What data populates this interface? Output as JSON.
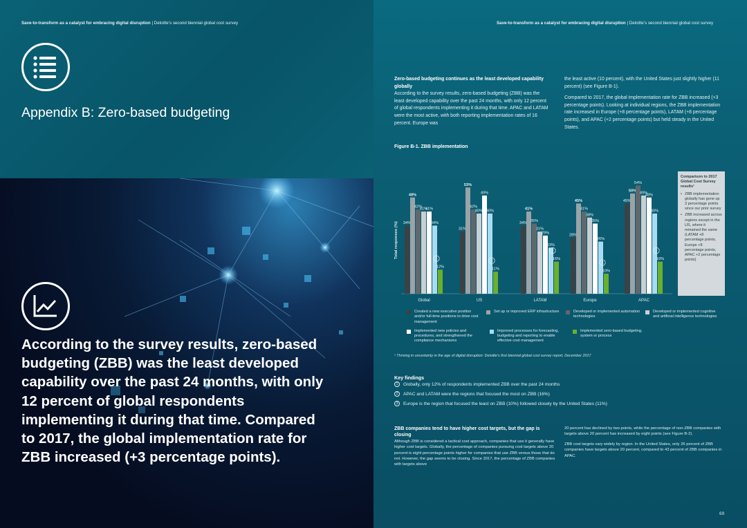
{
  "left": {
    "running_head_bold": "Save-to-transform as a catalyst for embracing digital disruption",
    "running_head_rest": "Deloitte’s second biennial global cost survey",
    "appendix_title": "Appendix B: Zero-based budgeting",
    "quote": "According to the survey results, zero-based budgeting (ZBB) was the least developed capability over the past 24 months, with only 12 percent of global respondents implementing it during that time. Compared to 2017, the global implementation rate for ZBB increased (+3 percentage points)."
  },
  "right": {
    "running_head_bold": "Save-to-transform as a catalyst for embracing digital disruption",
    "running_head_rest": "Deloitte’s second biennial global cost survey",
    "section1": {
      "heading": "Zero-based budgeting continues as the least developed capability globally",
      "col1_body": "According to the survey results, zero-based budgeting (ZBB) was the least developed capability over the past 24 months, with only 12 percent of global respondents implementing it during that time. APAC and LATAM were the most active, with both reporting implementation rates of 16 percent. Europe was",
      "col2_p1": "the least active (10 percent), with the United States just slightly higher (11 percent) (see Figure B-1).",
      "col2_p2": "Compared to 2017, the global implementation rate for ZBB increased (+3 percentage points). Looking at individual regions, the ZBB implementation rate increased in Europe (+8 percentage points), LATAM (+8 percentage points), and APAC (+2 percentage points) but held steady in the United States."
    },
    "figure_title": "Figure B-1. ZBB implementation",
    "comparison_box": {
      "heading": "Comparison to 2017 Global Cost Survey results¹",
      "bullets": [
        "ZBB implementation globally has gone up 3 percentage points since our prior survey",
        "ZBB increased across regions except in the US, where it remained the same (LATAM +8 percentage points, Europe +8 percentage points, APAC +2 percentage points)"
      ]
    },
    "legend": [
      "Created a new executive position and/or full-time positions to drive cost management",
      "Set up or improved ERP infrastructure",
      "Developed or implemented automation technologies",
      "Developed or implemented cognitive and artificial intelligence technologies",
      "Implemented new policies and procedures, and strengthened the compliance mechanisms",
      "Improved processes for forecasting, budgeting and reporting to enable effective cost management",
      "Implemented zero-based budgeting, system or process"
    ],
    "footnote": "¹ Thriving in uncertainty in the age of digital disruption: Deloitte's first biennial global cost survey report, December 2017",
    "key_findings": {
      "heading": "Key findings",
      "items": [
        {
          "num": "1",
          "text": "Globally, only 12% of respondents implemented ZBB over the past 24 months"
        },
        {
          "num": "2",
          "text": "APAC and LATAM were the regions that focused the most on ZBB (16%)"
        },
        {
          "num": "3",
          "text": "Europe is the region that focused the least on ZBB (10%) followed closely by the United States (11%)"
        }
      ]
    },
    "section2": {
      "heading": "ZBB companies tend to have higher cost targets, but the gap is closing",
      "col1_body": "Although ZBB is considered a tactical cost approach, companies that use it generally have higher cost targets. Globally, the percentage of companies pursuing cost targets above 20 percent is eight percentage points higher for companies that use ZBB versus those that do not. However, the gap seems to be closing. Since 2017, the percentage of ZBB companies with targets above",
      "col2_p1": "20 percent has declined by two points, while the percentage of non-ZBB companies with targets above 20 percent has increased by eight points (see Figure B-2).",
      "col2_p2": "ZBB cost targets vary widely by region. In the United States, only 26 percent of ZBB companies have targets above 20 percent, compared to 43 percent of ZBB companies in APAC."
    },
    "page_number": "69"
  },
  "colors": {
    "series": [
      "#3b4145",
      "#9aa3a8",
      "#5f686d",
      "#c9d0d4",
      "#ffffff",
      "#a8dcf2",
      "#6ab02e"
    ]
  },
  "chart_data": {
    "type": "bar",
    "title": "Figure B-1. ZBB implementation",
    "ylabel": "Total responses (%)",
    "xlabel": "",
    "ylim": [
      0,
      60
    ],
    "categories": [
      "Global",
      "US",
      "LATAM",
      "Europe",
      "APAC"
    ],
    "series": [
      {
        "name": "Created a new executive position and/or full-time positions to drive cost management",
        "values": [
          34,
          31,
          34,
          28,
          45
        ]
      },
      {
        "name": "Set up or improved ERP infrastructure",
        "values": [
          48,
          53,
          41,
          45,
          50
        ]
      },
      {
        "name": "Developed or implemented automation technologies",
        "values": [
          42,
          42,
          35,
          41,
          54
        ]
      },
      {
        "name": "Developed or implemented cognitive and artificial intelligence technologies",
        "values": [
          41,
          40,
          31,
          38,
          49
        ]
      },
      {
        "name": "Implemented new policies and procedures, and strengthened the compliance mechanisms",
        "values": [
          41,
          49,
          29,
          35,
          48
        ]
      },
      {
        "name": "Improved processes for forecasting, budgeting and reporting to enable effective cost management",
        "values": [
          34,
          40,
          23,
          26,
          40
        ]
      },
      {
        "name": "Implemented zero-based budgeting, system or process",
        "values": [
          12,
          11,
          16,
          10,
          16
        ]
      }
    ],
    "zbb_rank_markers": [
      "1",
      "3",
      "2",
      "3",
      "2"
    ]
  }
}
